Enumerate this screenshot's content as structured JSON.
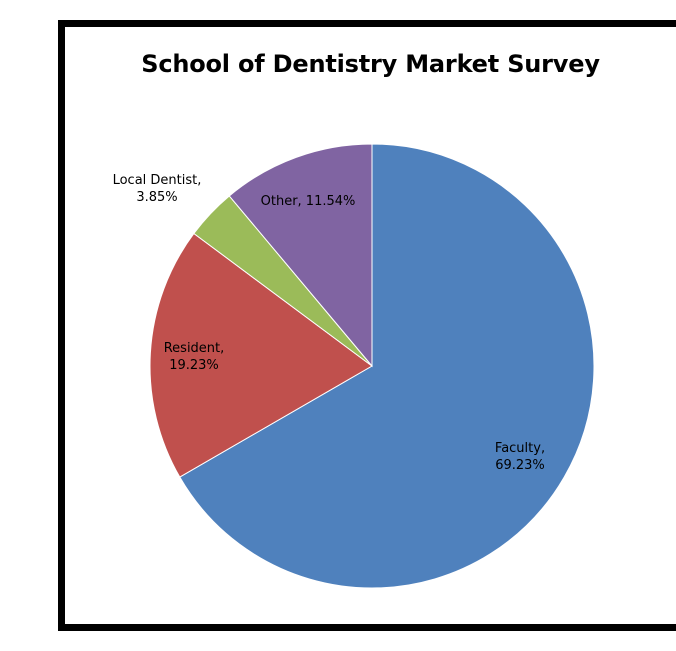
{
  "chart_data": {
    "type": "pie",
    "title": "School of Dentistry Market Survey",
    "slices": [
      {
        "name": "Faculty",
        "value": 69.23,
        "label_line1": "Faculty,",
        "label_line2": "69.23%",
        "color": "#4F81BD"
      },
      {
        "name": "Resident",
        "value": 19.23,
        "label_line1": "Resident,",
        "label_line2": "19.23%",
        "color": "#C0504D"
      },
      {
        "name": "Local Dentist",
        "value": 3.85,
        "label_line1": "Local Dentist,",
        "label_line2": "3.85%",
        "color": "#9BBB59"
      },
      {
        "name": "Other",
        "value": 11.54,
        "label_line1": "Other, 11.54%",
        "label_line2": "",
        "color": "#8064A2"
      }
    ],
    "start_angle_deg": 0,
    "direction": "clockwise",
    "legend": "none"
  }
}
